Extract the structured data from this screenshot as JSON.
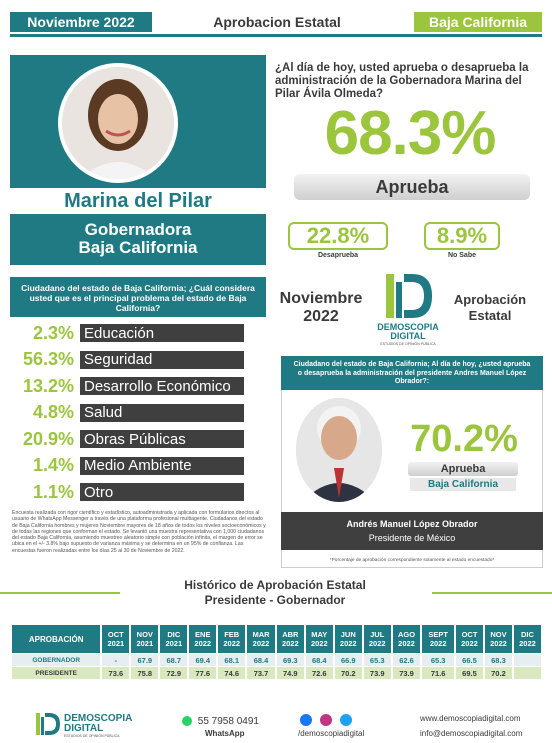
{
  "header": {
    "date": "Noviembre 2022",
    "center": "Aprobacion Estatal",
    "state": "Baja California"
  },
  "profile": {
    "name": "Marina del Pilar",
    "title_line1": "Gobernadora",
    "title_line2": "Baja California"
  },
  "main_question": "¿Al día de hoy, usted aprueba o desaprueba la administración de la Gobernadora Marina del Pilar Ávila Olmeda?",
  "approval": {
    "value": "68.3%",
    "label": "Aprueba",
    "disapprove_value": "22.8%",
    "disapprove_label": "Desaprueba",
    "nosabe_value": "8.9%",
    "nosabe_label": "No Sabe"
  },
  "problem": {
    "header": "Ciudadano del estado de Baja California; ¿Cuál considera usted que es el principal problema del estado de Baja California?",
    "items": [
      {
        "pct": "2.3%",
        "label": "Educación"
      },
      {
        "pct": "56.3%",
        "label": "Seguridad"
      },
      {
        "pct": "13.2%",
        "label": "Desarrollo Económico"
      },
      {
        "pct": "4.8%",
        "label": "Salud"
      },
      {
        "pct": "20.9%",
        "label": "Obras Públicas"
      },
      {
        "pct": "1.4%",
        "label": "Medio Ambiente"
      },
      {
        "pct": "1.1%",
        "label": "Otro"
      }
    ]
  },
  "fineprint": "Encuesta realizada con rigor científico y estadístico, autoadministrada y aplicada con formularios directos al usuario de WhatsApp Messenger a través de una plataforma profesional multiagente. Ciudadanos del estado de Baja California hombres y mujeres Noviembre mayores de 18 años de todos los niveles socioeconómicos y de todas las regiones que conforman el estado. Se levantó una muestra representativa con 1,000 ciudadanos del estado Baja California, asumiendo muestreo aleatorio simple con población infinita, el margen de error se ubica en el +/- 3.8% bajo supuesto de varianza máxima y se determina en un 95% de confianza. Las encuestas fueron realizadas entre los días 25 al 30 de Noviembre de 2022.",
  "center": {
    "date_line1": "Noviembre",
    "date_line2": "2022",
    "aprob_line1": "Aprobación",
    "aprob_line2": "Estatal",
    "logo_line1": "DEMOSCOPIA",
    "logo_line2": "DIGITAL",
    "logo_sub": "ESTUDIOS DE OPINIÓN PÚBLICA"
  },
  "amlo": {
    "header": "Ciudadano del estado de Baja California; Al día de hoy, ¿usted aprueba o desaprueba la administración del presidente Andres Manuel López Obrador?:",
    "value": "70.2%",
    "label": "Aprueba",
    "region": "Baja California",
    "name": "Andrés Manuel López Obrador",
    "role": "Presidente de México",
    "note": "*Porcentaje de aprobación correspondiente solamente al estado encuestado*"
  },
  "history": {
    "title_line1": "Histórico de Aprobación Estatal",
    "title_line2": "Presidente - Gobernador",
    "row_header": "APROBACIÓN",
    "months": [
      [
        "OCT",
        "2021"
      ],
      [
        "NOV",
        "2021"
      ],
      [
        "DIC",
        "2021"
      ],
      [
        "ENE",
        "2022"
      ],
      [
        "FEB",
        "2022"
      ],
      [
        "MAR",
        "2022"
      ],
      [
        "ABR",
        "2022"
      ],
      [
        "MAY",
        "2022"
      ],
      [
        "JUN",
        "2022"
      ],
      [
        "JUL",
        "2022"
      ],
      [
        "AGO",
        "2022"
      ],
      [
        "SEPT",
        "2022"
      ],
      [
        "OCT",
        "2022"
      ],
      [
        "NOV",
        "2022"
      ],
      [
        "DIC",
        "2022"
      ]
    ],
    "rows": [
      {
        "label": "GOBERNADOR",
        "values": [
          "-",
          "67.9",
          "68.7",
          "69.4",
          "68.1",
          "68.4",
          "69.3",
          "68.4",
          "66.9",
          "65.3",
          "62.6",
          "65.3",
          "66.5",
          "68.3",
          ""
        ]
      },
      {
        "label": "PRESIDENTE",
        "values": [
          "73.6",
          "75.8",
          "72.9",
          "77.6",
          "74.6",
          "73.7",
          "74.9",
          "72.6",
          "70.2",
          "73.9",
          "73.9",
          "71.6",
          "69.5",
          "70.2",
          ""
        ]
      }
    ]
  },
  "footer": {
    "brand_line1": "DEMOSCOPIA",
    "brand_line2": "DIGITAL",
    "brand_sub": "ESTUDIOS DE OPINIÓN PÚBLICA",
    "phone": "55 7958 0491",
    "phone_label": "WhatsApp",
    "handle": "/demoscopiadigital",
    "web": "www.demoscopiadigital.com",
    "email": "info@demoscopiadigital.com"
  },
  "colors": {
    "teal": "#1f7a83",
    "green": "#9bc53d",
    "dark": "#3f3f3f"
  }
}
